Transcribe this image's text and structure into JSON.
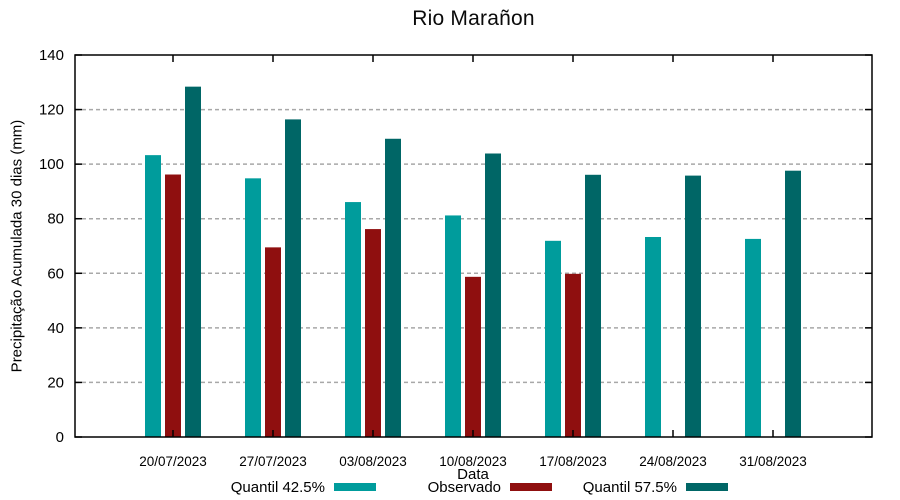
{
  "chart_data": {
    "type": "bar",
    "title": "Rio Marañon",
    "xlabel": "Data",
    "ylabel": "Precipitação Acumulada 30 dias (mm)",
    "categories": [
      "20/07/2023",
      "27/07/2023",
      "03/08/2023",
      "10/08/2023",
      "17/08/2023",
      "24/08/2023",
      "31/08/2023"
    ],
    "series": [
      {
        "name": "Quantil 42.5%",
        "color": "#009c9c",
        "values": [
          103.3,
          94.8,
          86.1,
          81.2,
          71.9,
          73.3,
          72.6
        ]
      },
      {
        "name": "Observado",
        "color": "#8f0f0f",
        "values": [
          96.2,
          69.5,
          76.2,
          58.7,
          59.8,
          null,
          null
        ]
      },
      {
        "name": "Quantil 57.5%",
        "color": "#006666",
        "values": [
          128.4,
          116.4,
          109.3,
          103.9,
          96.1,
          95.8,
          97.6
        ]
      }
    ],
    "ylim": [
      0,
      140
    ],
    "ytick_step": 20,
    "grid": true,
    "grid_color": "#a8a8a8",
    "axis_color": "#000000",
    "legend_position": "bottom"
  }
}
